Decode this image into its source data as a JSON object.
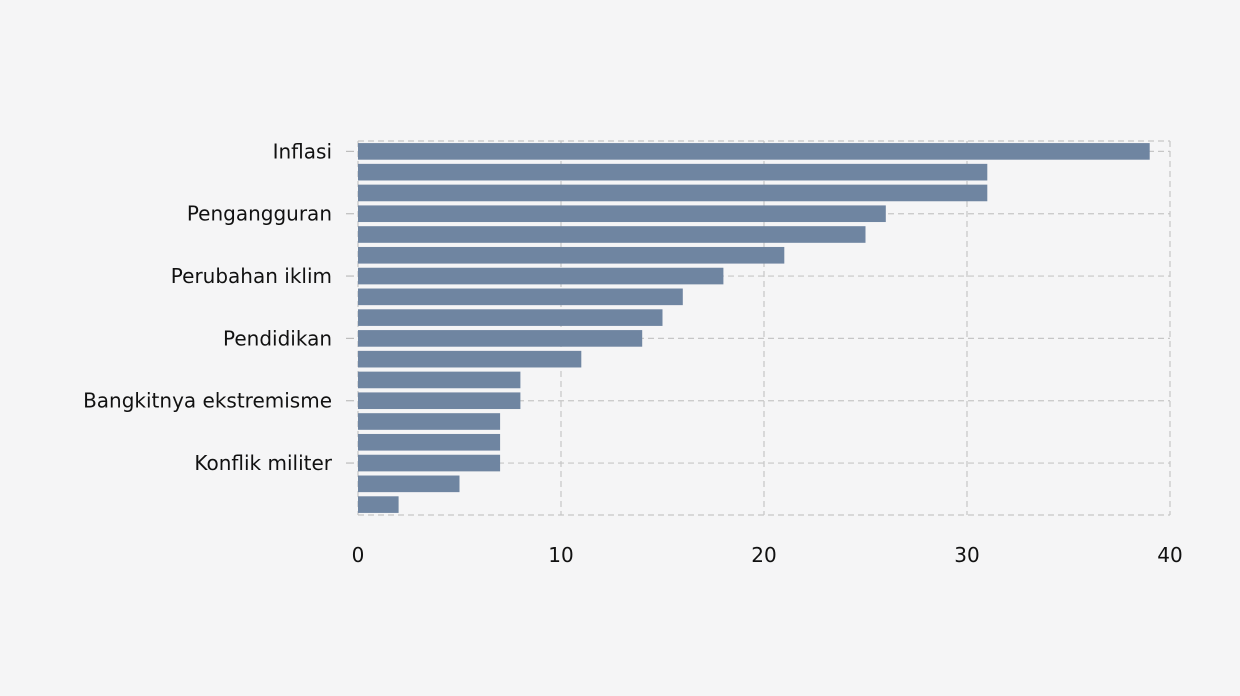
{
  "chart_data": {
    "type": "bar",
    "orientation": "horizontal",
    "values": [
      39,
      31,
      31,
      26,
      25,
      21,
      18,
      16,
      15,
      14,
      11,
      8,
      8,
      7,
      7,
      7,
      5,
      2
    ],
    "y_tick_labels": [
      {
        "index": 0,
        "label": "Inflasi"
      },
      {
        "index": 3,
        "label": "Pengangguran"
      },
      {
        "index": 6,
        "label": "Perubahan iklim"
      },
      {
        "index": 9,
        "label": "Pendidikan"
      },
      {
        "index": 12,
        "label": "Bangkitnya ekstremisme"
      },
      {
        "index": 15,
        "label": "Konflik militer"
      }
    ],
    "x_ticks": [
      0,
      10,
      20,
      30,
      40
    ],
    "xlim": [
      0,
      40
    ],
    "title": "",
    "xlabel": "",
    "ylabel": "",
    "grid": true,
    "bar_color": "#6f85a1"
  }
}
